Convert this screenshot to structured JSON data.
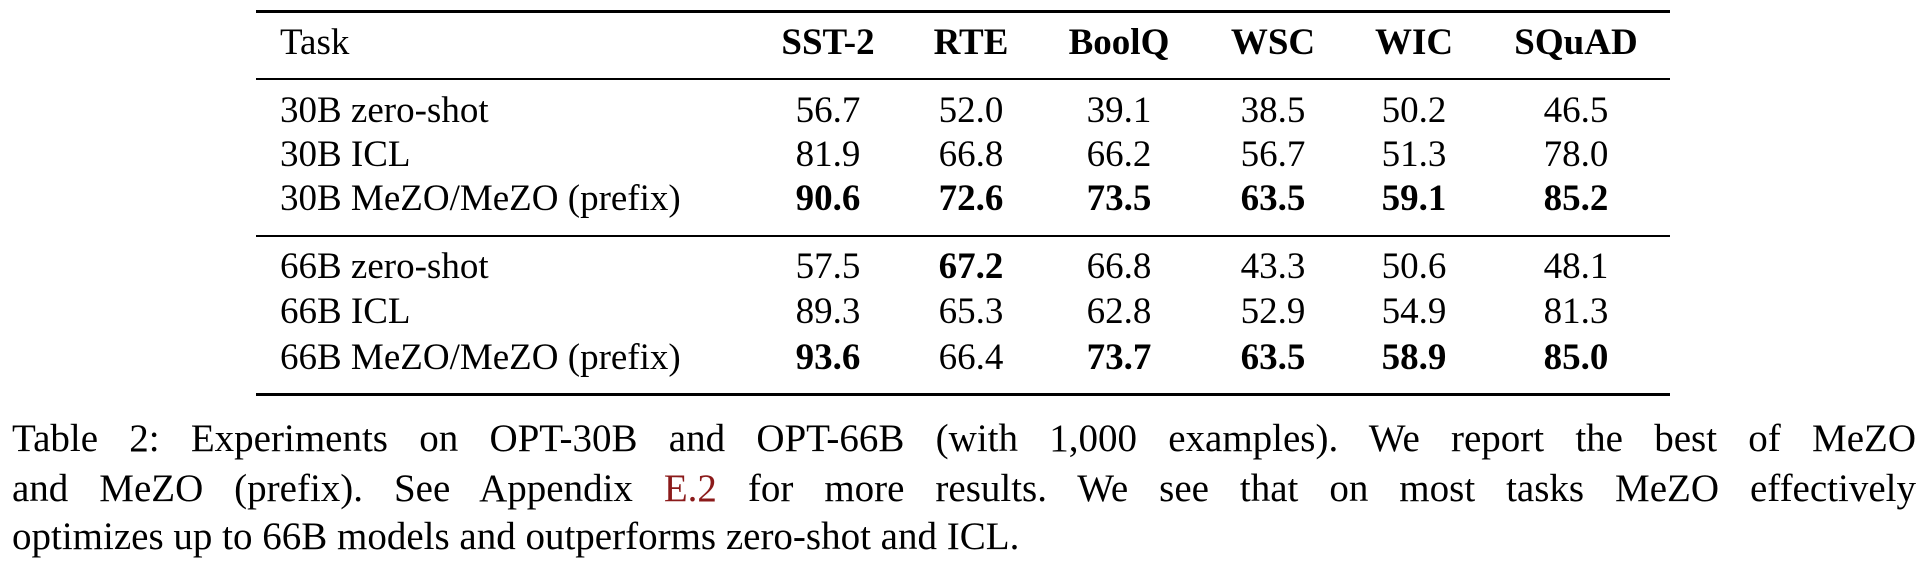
{
  "table": {
    "row_header": "Task",
    "columns": [
      "SST-2",
      "RTE",
      "BoolQ",
      "WSC",
      "WIC",
      "SQuAD"
    ],
    "groups": [
      [
        {
          "label": "30B zero-shot",
          "values": [
            "56.7",
            "52.0",
            "39.1",
            "38.5",
            "50.2",
            "46.5"
          ],
          "bold": [
            false,
            false,
            false,
            false,
            false,
            false
          ]
        },
        {
          "label": "30B ICL",
          "values": [
            "81.9",
            "66.8",
            "66.2",
            "56.7",
            "51.3",
            "78.0"
          ],
          "bold": [
            false,
            false,
            false,
            false,
            false,
            false
          ]
        },
        {
          "label": "30B MeZO/MeZO (prefix)",
          "values": [
            "90.6",
            "72.6",
            "73.5",
            "63.5",
            "59.1",
            "85.2"
          ],
          "bold": [
            true,
            true,
            true,
            true,
            true,
            true
          ]
        }
      ],
      [
        {
          "label": "66B zero-shot",
          "values": [
            "57.5",
            "67.2",
            "66.8",
            "43.3",
            "50.6",
            "48.1"
          ],
          "bold": [
            false,
            true,
            false,
            false,
            false,
            false
          ]
        },
        {
          "label": "66B ICL",
          "values": [
            "89.3",
            "65.3",
            "62.8",
            "52.9",
            "54.9",
            "81.3"
          ],
          "bold": [
            false,
            false,
            false,
            false,
            false,
            false
          ]
        },
        {
          "label": "66B MeZO/MeZO (prefix)",
          "values": [
            "93.6",
            "66.4",
            "73.7",
            "63.5",
            "58.9",
            "85.0"
          ],
          "bold": [
            true,
            false,
            true,
            true,
            true,
            true
          ]
        }
      ]
    ]
  },
  "caption": {
    "line1": "Table 2: Experiments on OPT-30B and OPT-66B (with 1,000 examples). We report the best of MeZO",
    "line2_before": "and MeZO (prefix). See Appendix",
    "line2_link": "E.2",
    "line2_after": "for more results. We see that on most tasks MeZO effectively",
    "line3": "optimizes up to 66B models and outperforms zero-shot and ICL."
  }
}
